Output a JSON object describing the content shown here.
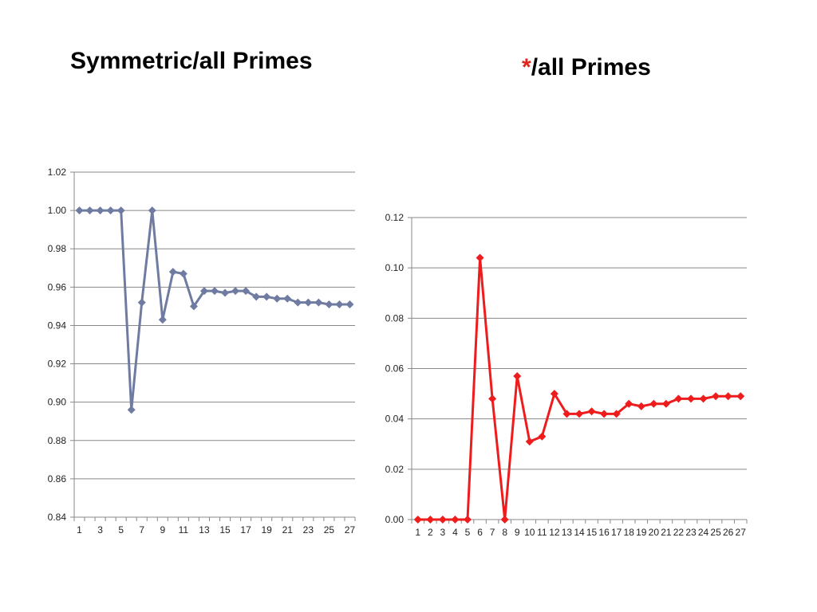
{
  "slide": {
    "title_left": "Symmetric/all Primes",
    "title_right_star": "*",
    "title_right_text": "/all Primes"
  },
  "colors": {
    "left_series": "#6f7ba0",
    "right_series": "#ee1c1c",
    "grid": "#888888",
    "asterisk": "#e0241c"
  },
  "chart_data": [
    {
      "type": "line",
      "title": "",
      "xlabel": "",
      "ylabel": "",
      "x": [
        1,
        2,
        3,
        4,
        5,
        6,
        7,
        8,
        9,
        10,
        11,
        12,
        13,
        14,
        15,
        16,
        17,
        18,
        19,
        20,
        21,
        22,
        23,
        24,
        25,
        26,
        27
      ],
      "x_tick_labels": [
        "1",
        "3",
        "5",
        "7",
        "9",
        "11",
        "13",
        "15",
        "17",
        "19",
        "21",
        "23",
        "25",
        "27"
      ],
      "ylim": [
        0.84,
        1.02
      ],
      "y_ticks": [
        "0.84",
        "0.86",
        "0.88",
        "0.90",
        "0.92",
        "0.94",
        "0.96",
        "0.98",
        "1.00",
        "1.02"
      ],
      "grid": true,
      "marker": "diamond",
      "series": [
        {
          "values": [
            1.0,
            1.0,
            1.0,
            1.0,
            1.0,
            0.896,
            0.952,
            1.0,
            0.943,
            0.968,
            0.967,
            0.95,
            0.958,
            0.958,
            0.957,
            0.958,
            0.958,
            0.955,
            0.955,
            0.954,
            0.954,
            0.952,
            0.952,
            0.952,
            0.951,
            0.951,
            0.951
          ]
        }
      ]
    },
    {
      "type": "line",
      "title": "",
      "xlabel": "",
      "ylabel": "",
      "x": [
        1,
        2,
        3,
        4,
        5,
        6,
        7,
        8,
        9,
        10,
        11,
        12,
        13,
        14,
        15,
        16,
        17,
        18,
        19,
        20,
        21,
        22,
        23,
        24,
        25,
        26,
        27
      ],
      "x_tick_labels": [
        "1",
        "2",
        "3",
        "4",
        "5",
        "6",
        "7",
        "8",
        "9",
        "10",
        "11",
        "12",
        "13",
        "14",
        "15",
        "16",
        "17",
        "18",
        "19",
        "20",
        "21",
        "22",
        "23",
        "24",
        "25",
        "26",
        "27"
      ],
      "ylim": [
        0.0,
        0.12
      ],
      "y_ticks": [
        "0.00",
        "0.02",
        "0.04",
        "0.06",
        "0.08",
        "0.10",
        "0.12"
      ],
      "grid": true,
      "marker": "diamond",
      "series": [
        {
          "values": [
            0.0,
            0.0,
            0.0,
            0.0,
            0.0,
            0.104,
            0.048,
            0.0,
            0.057,
            0.031,
            0.033,
            0.05,
            0.042,
            0.042,
            0.043,
            0.042,
            0.042,
            0.046,
            0.045,
            0.046,
            0.046,
            0.048,
            0.048,
            0.048,
            0.049,
            0.049,
            0.049
          ]
        }
      ]
    }
  ]
}
